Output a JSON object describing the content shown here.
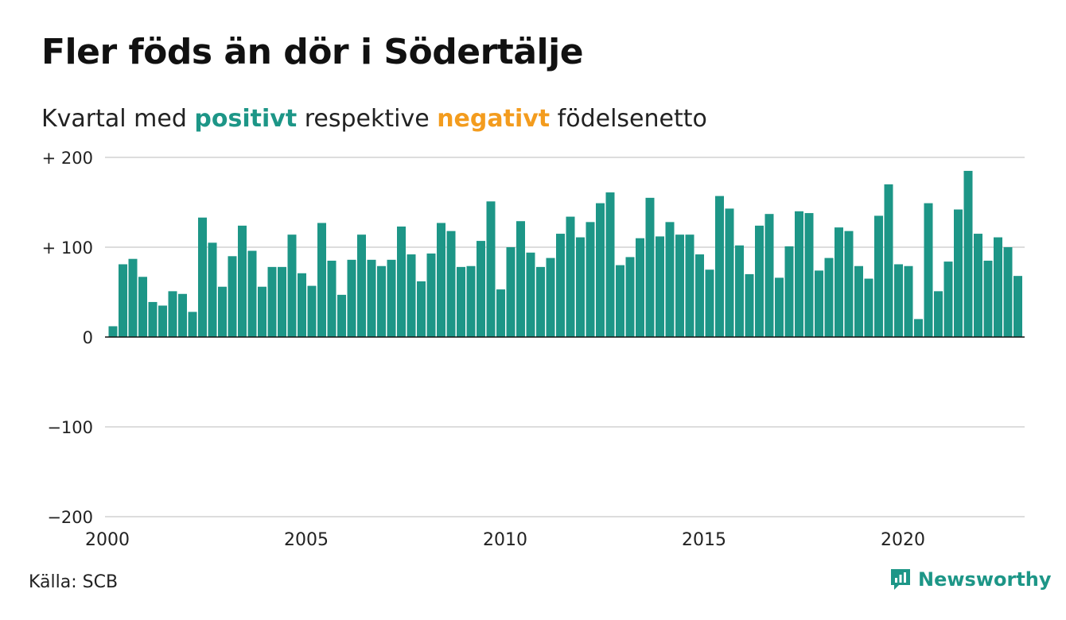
{
  "title": "Fler föds än dör i Södertälje",
  "subtitle": {
    "prefix": "Kvartal med ",
    "positive": "positivt",
    "middle": " respektive ",
    "negative": "negativt",
    "suffix": " födelsenetto"
  },
  "source": "Källa: SCB",
  "brand": "Newsworthy",
  "colors": {
    "positive": "#1d9687",
    "negative": "#f39c1e",
    "grid": "#dddddd",
    "axis": "#111111"
  },
  "chart_data": {
    "type": "bar",
    "title": "Fler föds än dör i Södertälje",
    "xlabel": "",
    "ylabel": "",
    "ylim": [
      -200,
      200
    ],
    "grid": true,
    "y_ticks": [
      {
        "value": 200,
        "label": "+ 200"
      },
      {
        "value": 100,
        "label": "+ 100"
      },
      {
        "value": 0,
        "label": "0"
      },
      {
        "value": -100,
        "label": "−100"
      },
      {
        "value": -200,
        "label": "−200"
      }
    ],
    "x_ticks": [
      {
        "value": 2000,
        "label": "2000"
      },
      {
        "value": 2005,
        "label": "2005"
      },
      {
        "value": 2010,
        "label": "2010"
      },
      {
        "value": 2015,
        "label": "2015"
      },
      {
        "value": 2020,
        "label": "2020"
      }
    ],
    "x_start": "2000 K1",
    "x_end": "2022 K4",
    "values": [
      12,
      81,
      87,
      67,
      39,
      35,
      51,
      48,
      28,
      133,
      105,
      56,
      90,
      124,
      96,
      56,
      78,
      78,
      114,
      71,
      57,
      127,
      85,
      47,
      86,
      114,
      86,
      79,
      86,
      123,
      92,
      62,
      93,
      127,
      118,
      78,
      79,
      107,
      151,
      53,
      100,
      129,
      94,
      78,
      88,
      115,
      134,
      111,
      128,
      149,
      161,
      80,
      89,
      110,
      155,
      112,
      128,
      114,
      114,
      92,
      75,
      157,
      143,
      102,
      70,
      124,
      137,
      66,
      101,
      140,
      138,
      74,
      88,
      122,
      118,
      79,
      65,
      135,
      170,
      81,
      79,
      20,
      149,
      51,
      84,
      142,
      185,
      115,
      85,
      111,
      100,
      68
    ]
  }
}
